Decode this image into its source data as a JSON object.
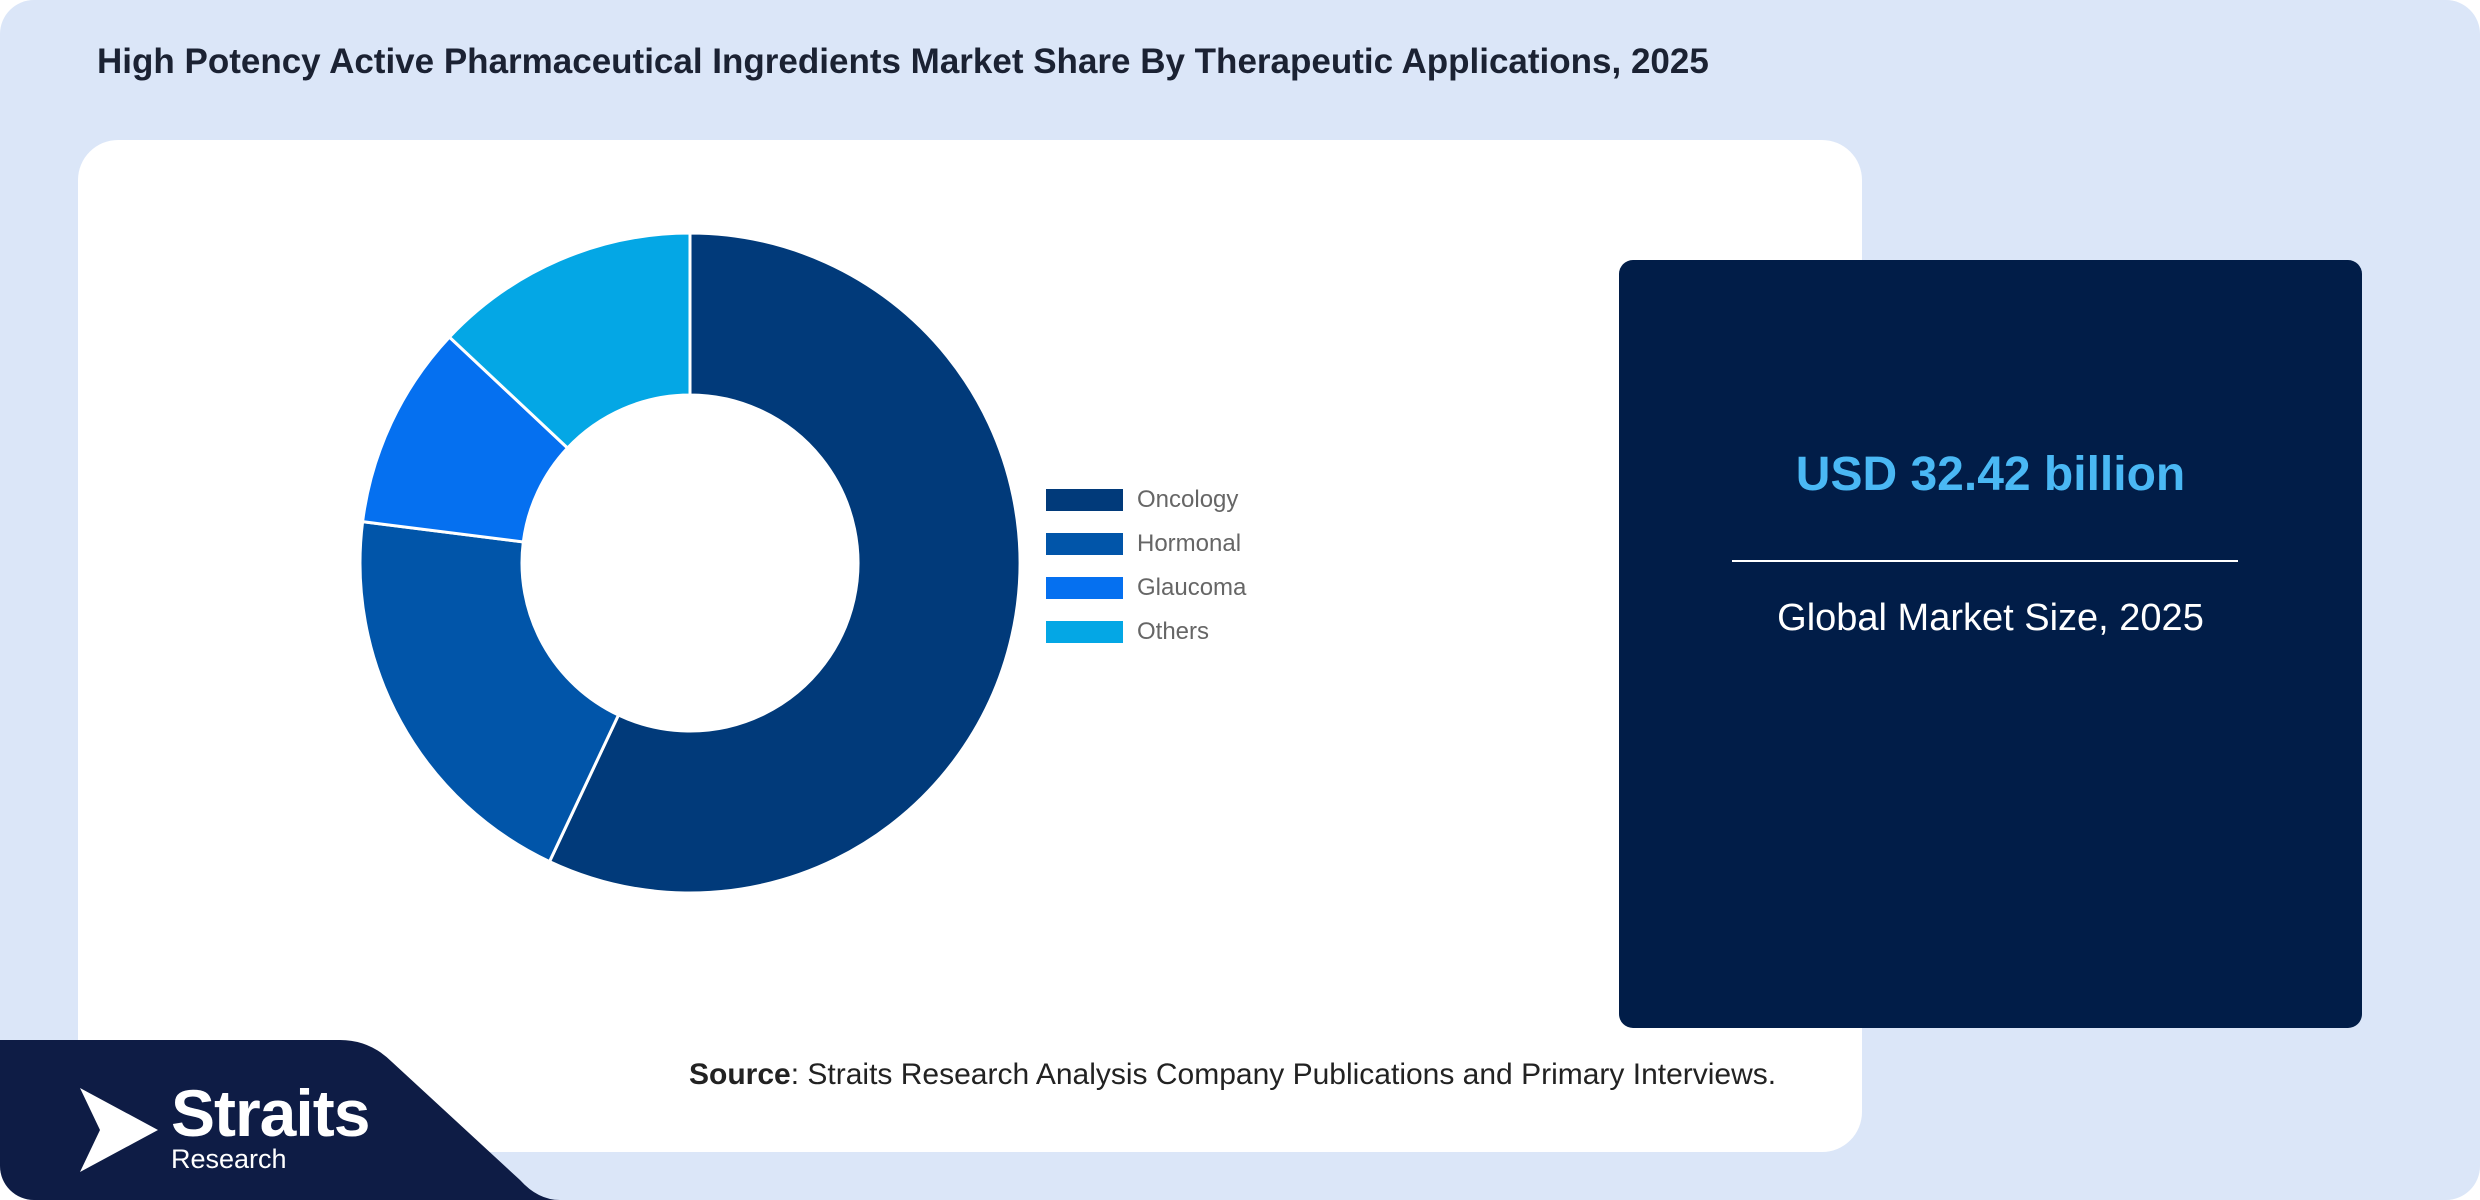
{
  "title": "High Potency Active Pharmaceutical Ingredients Market Share By Therapeutic Applications, 2025",
  "chart_data": {
    "type": "pie",
    "donut": true,
    "categories": [
      "Oncology",
      "Hormonal",
      "Glaucoma",
      "Others"
    ],
    "values": [
      57,
      20,
      10,
      13
    ],
    "unit": "%",
    "colors": [
      "#013a7a",
      "#0155a9",
      "#0570f0",
      "#04a7e5"
    ],
    "legend_position": "right"
  },
  "market": {
    "value": "USD 32.42 billion",
    "caption": "Global Market Size, 2025"
  },
  "source": {
    "label": "Source",
    "text": ": Straits Research Analysis Company Publications and Primary Interviews."
  },
  "brand": {
    "name": "Straits",
    "sub": "Research"
  },
  "colors": {
    "background": "#dbe6f8",
    "info_box": "#011d48",
    "accent_value": "#4ab8f4",
    "footer_navy": "#0e1c45"
  }
}
